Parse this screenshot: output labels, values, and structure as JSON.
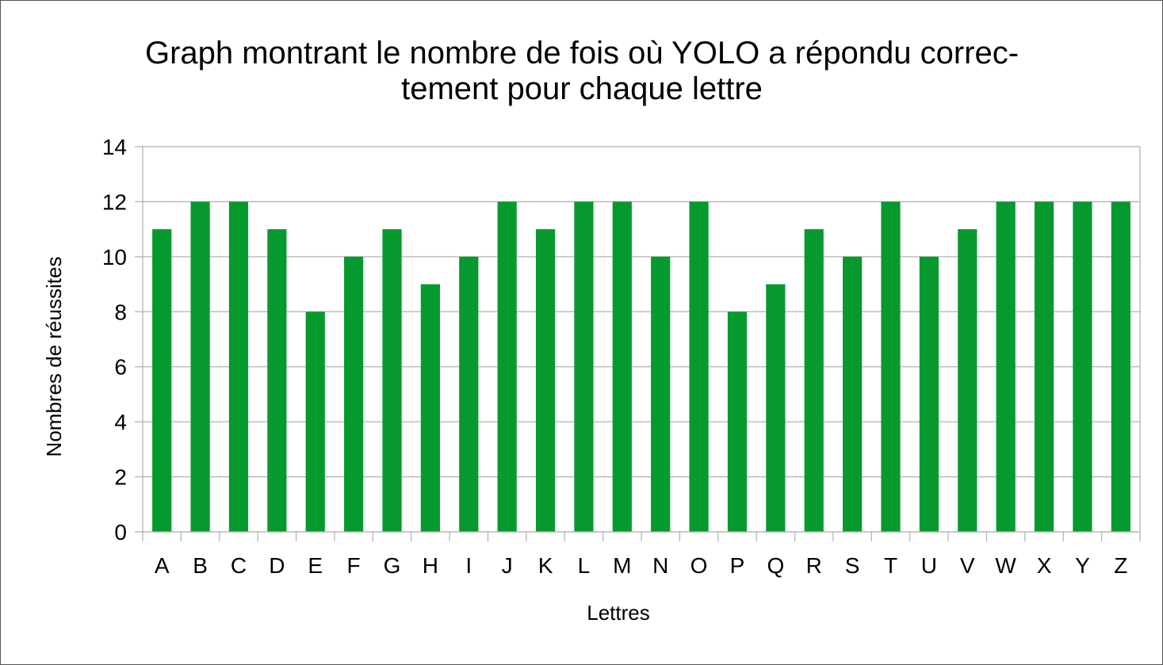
{
  "chart_data": {
    "type": "bar",
    "title_lines": [
      "Graph montrant le nombre de fois où YOLO a répondu correc-",
      "tement pour chaque lettre"
    ],
    "xlabel": "Lettres",
    "ylabel": "Nombres de réussites",
    "categories": [
      "A",
      "B",
      "C",
      "D",
      "E",
      "F",
      "G",
      "H",
      "I",
      "J",
      "K",
      "L",
      "M",
      "N",
      "O",
      "P",
      "Q",
      "R",
      "S",
      "T",
      "U",
      "V",
      "W",
      "X",
      "Y",
      "Z"
    ],
    "values": [
      11,
      12,
      12,
      11,
      8,
      10,
      11,
      9,
      10,
      12,
      11,
      12,
      12,
      10,
      12,
      8,
      9,
      11,
      10,
      12,
      10,
      11,
      12,
      12,
      12,
      12
    ],
    "ylim": [
      0,
      14
    ],
    "yticks": [
      "0",
      "2",
      "4",
      "6",
      "8",
      "10",
      "12",
      "14"
    ],
    "grid": true,
    "legend": "none",
    "bar_color": "#069a2e",
    "grid_color": "#b3b3b3"
  }
}
